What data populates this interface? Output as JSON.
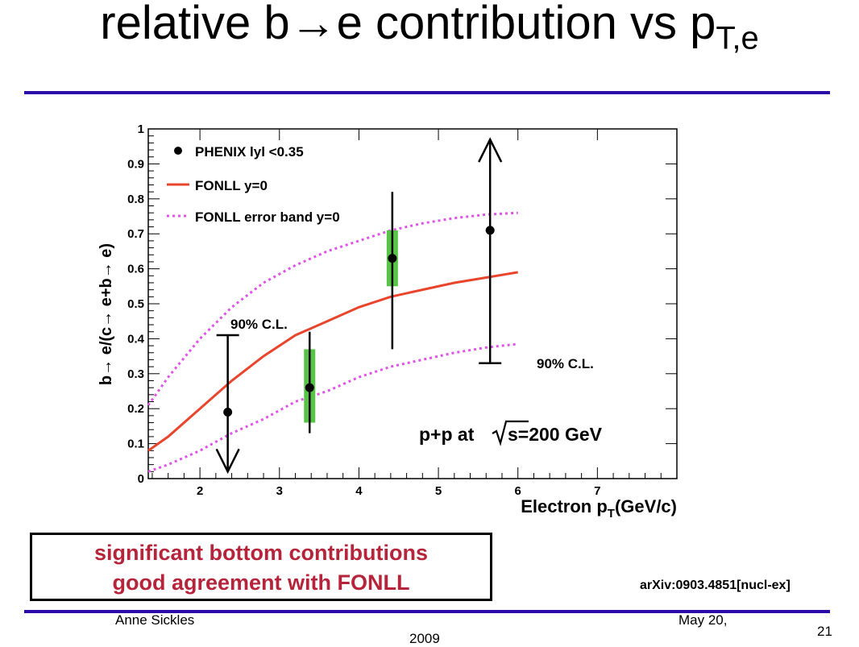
{
  "slide": {
    "title_main": "relative b→e contribution vs p",
    "title_sub": "T,e",
    "note_line1": "significant bottom contributions",
    "note_line2": "good agreement with FONLL",
    "reference": "arXiv:0903.4851[nucl-ex]",
    "author": "Anne Sickles",
    "date_line1": "May 20,",
    "date_line2": "2009",
    "page_number": "21",
    "rule_color": "#2b0aa8"
  },
  "chart_data": {
    "type": "scatter",
    "ylabel": "b→ e/(c→ e+b→ e)",
    "xlabel": "Electron p",
    "xlabel_sub": "T",
    "xlabel_unit": "(GeV/c)",
    "xlim": [
      1.35,
      8.0
    ],
    "ylim": [
      0,
      1.0
    ],
    "xticks": [
      "2",
      "3",
      "4",
      "5",
      "6",
      "7"
    ],
    "yticks": [
      "0",
      "0.1",
      "0.2",
      "0.3",
      "0.4",
      "0.5",
      "0.6",
      "0.7",
      "0.8",
      "0.9",
      "1"
    ],
    "grid": false,
    "legend_position": "top-left",
    "legend": [
      {
        "label": "PHENIX lyl <0.35",
        "marker": "dot",
        "color": "#000000"
      },
      {
        "label": "FONLL y=0",
        "marker": "line",
        "color": "#e8452c"
      },
      {
        "label": "FONLL error band y=0",
        "marker": "dotted",
        "color": "#e052e8"
      }
    ],
    "annotations": {
      "cl_left": "90% C.L.",
      "cl_right": "90% C.L.",
      "energy": "p+p at",
      "energy_tail": "s=200 GeV"
    },
    "series": [
      {
        "name": "PHENIX lyl <0.35",
        "type": "points",
        "color": "#000000",
        "points": [
          {
            "x": 2.35,
            "y": 0.19,
            "err_low": 0.19,
            "err_high": 0.22,
            "syst_low": null,
            "syst_high": null,
            "limit": "upper",
            "limit_value": 0.41
          },
          {
            "x": 3.38,
            "y": 0.26,
            "err_low": 0.13,
            "err_high": 0.16,
            "syst_low": 0.16,
            "syst_high": 0.37,
            "limit": null
          },
          {
            "x": 4.42,
            "y": 0.63,
            "err_low": 0.26,
            "err_high": 0.19,
            "syst_low": 0.55,
            "syst_high": 0.71,
            "limit": null
          },
          {
            "x": 5.65,
            "y": 0.71,
            "err_low": 0.38,
            "err_high": 0.29,
            "syst_low": null,
            "syst_high": null,
            "limit": "lower",
            "limit_value": 0.33
          }
        ]
      },
      {
        "name": "FONLL y=0",
        "type": "line",
        "color": "#e8452c",
        "x": [
          1.35,
          1.6,
          2.0,
          2.4,
          2.8,
          3.2,
          3.6,
          4.0,
          4.4,
          4.8,
          5.2,
          5.6,
          6.0
        ],
        "y": [
          0.08,
          0.12,
          0.2,
          0.28,
          0.35,
          0.41,
          0.45,
          0.49,
          0.52,
          0.54,
          0.56,
          0.575,
          0.59
        ]
      },
      {
        "name": "FONLL error band upper",
        "type": "dotted",
        "color": "#e052e8",
        "x": [
          1.35,
          1.6,
          2.0,
          2.4,
          2.8,
          3.2,
          3.6,
          4.0,
          4.4,
          4.8,
          5.2,
          5.6,
          6.0
        ],
        "y": [
          0.21,
          0.29,
          0.4,
          0.49,
          0.56,
          0.61,
          0.65,
          0.68,
          0.71,
          0.73,
          0.745,
          0.755,
          0.76
        ]
      },
      {
        "name": "FONLL error band lower",
        "type": "dotted",
        "color": "#e052e8",
        "x": [
          1.35,
          1.6,
          2.0,
          2.4,
          2.8,
          3.2,
          3.6,
          4.0,
          4.4,
          4.8,
          5.2,
          5.6,
          6.0
        ],
        "y": [
          0.02,
          0.04,
          0.08,
          0.13,
          0.17,
          0.22,
          0.25,
          0.29,
          0.32,
          0.34,
          0.36,
          0.375,
          0.385
        ]
      }
    ],
    "syst_color": "#57c447"
  }
}
